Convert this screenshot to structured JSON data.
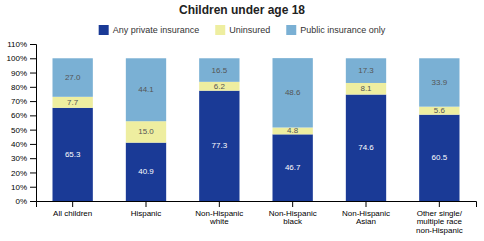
{
  "chart_data": {
    "type": "bar",
    "stacked": true,
    "data_labels": true,
    "legend": "top",
    "title": "Children under age 18",
    "categories": [
      "All children",
      "Hispanic",
      "Non-Hispanic\nwhite",
      "Non-Hispanic\nblack",
      "Non-Hispanic\nAsian",
      "Other single/\nmultiple race\nnon-Hispanic"
    ],
    "series": [
      {
        "name": "Any private insurance",
        "color": "#1a3a96",
        "values": [
          65.3,
          40.9,
          77.3,
          46.7,
          74.6,
          60.5
        ],
        "value_labels": [
          "65.3",
          "40.9",
          "77.3",
          "46.7",
          "74.6",
          "60.5"
        ]
      },
      {
        "name": "Uninsured",
        "color": "#eeeea0",
        "values": [
          7.7,
          15.0,
          6.2,
          4.8,
          8.1,
          5.6
        ],
        "value_labels": [
          "7.7",
          "15.0",
          "6.2",
          "4.8",
          "8.1",
          "5.6"
        ]
      },
      {
        "name": "Public insurance only",
        "color": "#7ab0d4",
        "values": [
          27.0,
          44.1,
          16.5,
          48.6,
          17.3,
          33.9
        ],
        "value_labels": [
          "27.0",
          "44.1",
          "16.5",
          "48.6",
          "17.3",
          "33.9"
        ]
      }
    ],
    "ylim": [
      0,
      110
    ],
    "yticks": [
      {
        "value": 0,
        "label": "0%"
      },
      {
        "value": 10,
        "label": "10%"
      },
      {
        "value": 20,
        "label": "20%"
      },
      {
        "value": 30,
        "label": "30%"
      },
      {
        "value": 40,
        "label": "40%"
      },
      {
        "value": 50,
        "label": "50%"
      },
      {
        "value": 60,
        "label": "60%"
      },
      {
        "value": 70,
        "label": "70%"
      },
      {
        "value": 80,
        "label": "80%"
      },
      {
        "value": 90,
        "label": "90%"
      },
      {
        "value": 100,
        "label": "100%"
      },
      {
        "value": 110,
        "label": "110%"
      }
    ]
  }
}
